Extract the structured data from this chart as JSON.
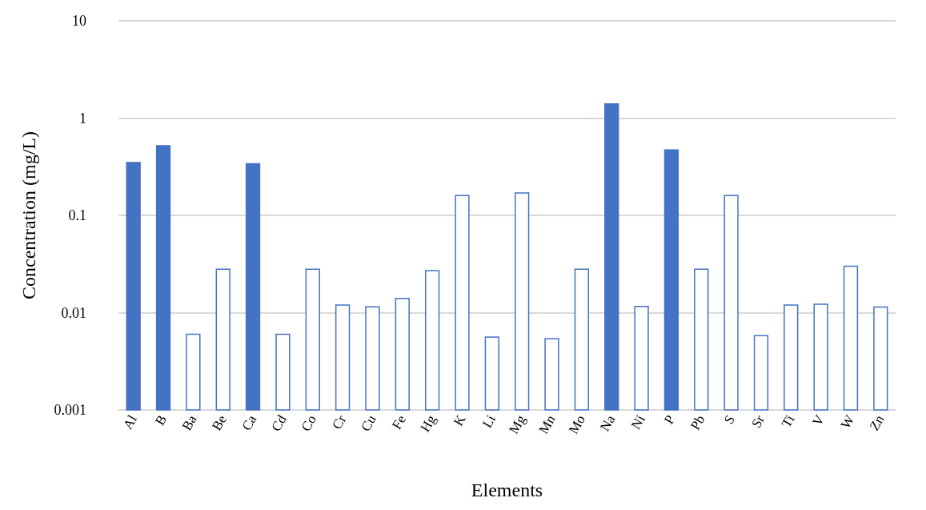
{
  "chart_data": {
    "type": "bar",
    "xlabel": "Elements",
    "ylabel": "Concentration (mg/L)",
    "categories": [
      "Al",
      "B",
      "Ba",
      "Be",
      "Ca",
      "Cd",
      "Co",
      "Cr",
      "Cu",
      "Fe",
      "Hg",
      "K",
      "Li",
      "Mg",
      "Mn",
      "Mo",
      "Na",
      "Ni",
      "P",
      "Pb",
      "S",
      "Sr",
      "Ti",
      "V",
      "W",
      "Zn"
    ],
    "values": [
      0.35,
      0.52,
      0.006,
      0.028,
      0.34,
      0.006,
      0.028,
      0.012,
      0.0115,
      0.014,
      0.027,
      0.16,
      0.0056,
      0.17,
      0.0054,
      0.028,
      1.4,
      0.0116,
      0.47,
      0.028,
      0.16,
      0.0058,
      0.012,
      0.0122,
      0.03,
      0.0114
    ],
    "color": "#4472c4",
    "colors": [
      "#4472c4",
      "#4472c4",
      "#ffffff",
      "#ffffff",
      "#4472c4",
      "#ffffff",
      "#ffffff",
      "#ffffff",
      "#ffffff",
      "#ffffff",
      "#ffffff",
      "#ffffff",
      "#ffffff",
      "#ffffff",
      "#ffffff",
      "#ffffff",
      "#4472c4",
      "#ffffff",
      "#4472c4",
      "#ffffff",
      "#ffffff",
      "#ffffff",
      "#ffffff",
      "#ffffff",
      "#ffffff",
      "#ffffff"
    ],
    "log": "y",
    "ylim": [
      0.001,
      10
    ],
    "yticks": [
      0.001,
      0.01,
      0.1,
      1,
      10
    ],
    "grid": "y"
  }
}
